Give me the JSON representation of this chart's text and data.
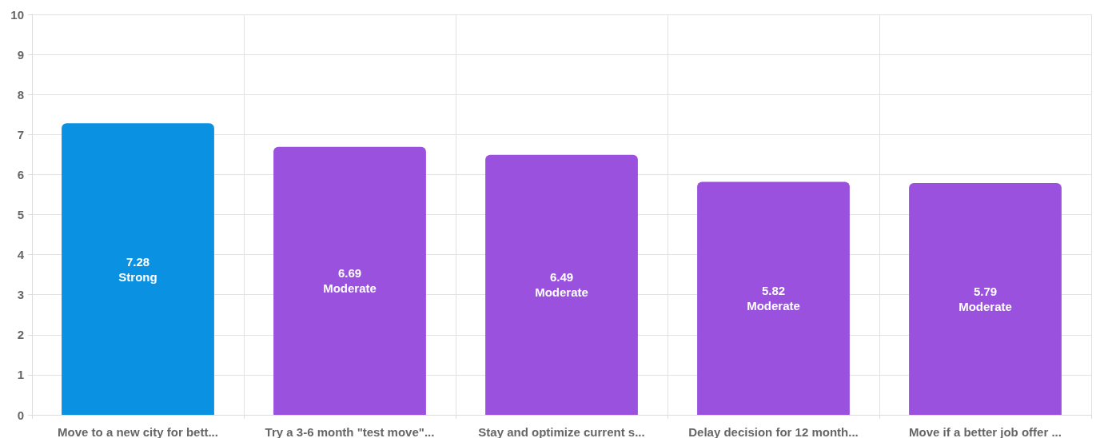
{
  "chart_data": {
    "type": "bar",
    "categories": [
      "Move to a new city for bett...",
      "Try a 3-6 month \"test move\"...",
      "Stay and optimize current s...",
      "Delay decision for 12 month...",
      "Move if a better job offer ..."
    ],
    "values": [
      7.28,
      6.69,
      6.49,
      5.82,
      5.79
    ],
    "colors": [
      "#0a91e2",
      "#9a52de",
      "#9a52de",
      "#9a52de",
      "#9a52de"
    ],
    "value_labels": [
      "7.28\nStrong",
      "6.69\nModerate",
      "6.49\nModerate",
      "5.82\nModerate",
      "5.79\nModerate"
    ],
    "ylim": [
      0,
      10
    ],
    "yticks": [
      0,
      1,
      2,
      3,
      4,
      5,
      6,
      7,
      8,
      9,
      10
    ],
    "grid": true
  }
}
